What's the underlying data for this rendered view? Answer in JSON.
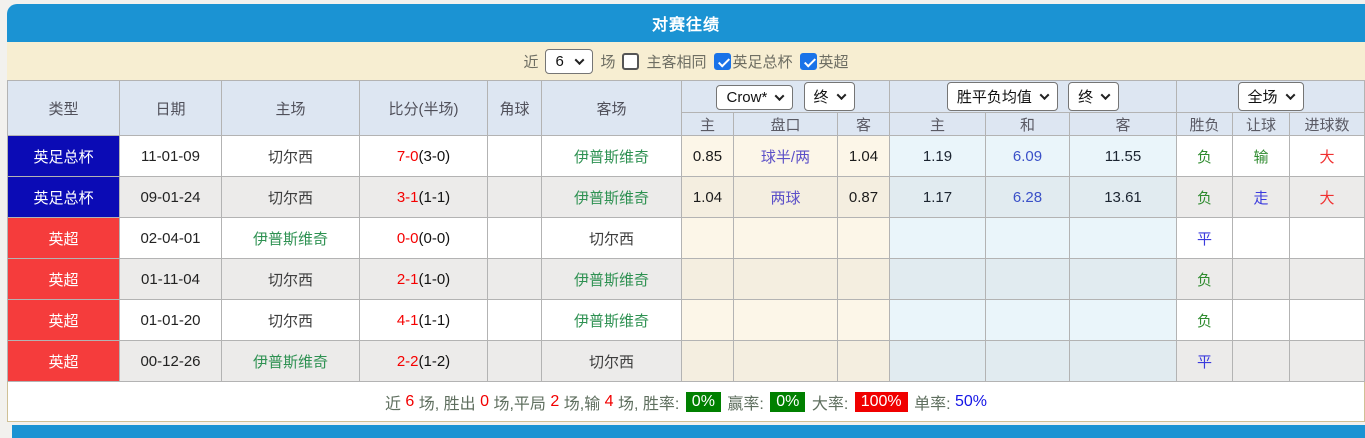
{
  "title": "对赛往绩",
  "filter": {
    "recent_label": "近",
    "count_value": "6",
    "matches_label": "场",
    "same_venue_label": "主客相同",
    "fa_cup_label": "英足总杯",
    "epl_label": "英超"
  },
  "table": {
    "left_headers": [
      "类型",
      "日期",
      "主场",
      "比分(半场)",
      "角球",
      "客场"
    ],
    "selects": {
      "bookmaker": "Crow*",
      "bookmaker_state": "终",
      "avg_label": "胜平负均值",
      "avg_state": "终",
      "fulltime": "全场"
    },
    "sub_headers": [
      "主",
      "盘口",
      "客",
      "主",
      "和",
      "客",
      "胜负",
      "让球",
      "进球数"
    ],
    "rows": [
      {
        "type": "英足总杯",
        "date": "11-01-09",
        "home": "切尔西",
        "score": "7-0",
        "half": "(3-0)",
        "corner": "",
        "away": "伊普斯维奇",
        "o_home": "0.85",
        "o_line": "球半/两",
        "o_away": "1.04",
        "a_home": "1.19",
        "a_draw": "6.09",
        "a_away": "11.55",
        "result": "负",
        "let": "输",
        "goals": "大"
      },
      {
        "type": "英足总杯",
        "date": "09-01-24",
        "home": "切尔西",
        "score": "3-1",
        "half": "(1-1)",
        "corner": "",
        "away": "伊普斯维奇",
        "o_home": "1.04",
        "o_line": "两球",
        "o_away": "0.87",
        "a_home": "1.17",
        "a_draw": "6.28",
        "a_away": "13.61",
        "result": "负",
        "let": "走",
        "goals": "大"
      },
      {
        "type": "英超",
        "date": "02-04-01",
        "home": "伊普斯维奇",
        "score": "0-0",
        "half": "(0-0)",
        "corner": "",
        "away": "切尔西",
        "o_home": "",
        "o_line": "",
        "o_away": "",
        "a_home": "",
        "a_draw": "",
        "a_away": "",
        "result": "平",
        "let": "",
        "goals": ""
      },
      {
        "type": "英超",
        "date": "01-11-04",
        "home": "切尔西",
        "score": "2-1",
        "half": "(1-0)",
        "corner": "",
        "away": "伊普斯维奇",
        "o_home": "",
        "o_line": "",
        "o_away": "",
        "a_home": "",
        "a_draw": "",
        "a_away": "",
        "result": "负",
        "let": "",
        "goals": ""
      },
      {
        "type": "英超",
        "date": "01-01-20",
        "home": "切尔西",
        "score": "4-1",
        "half": "(1-1)",
        "corner": "",
        "away": "伊普斯维奇",
        "o_home": "",
        "o_line": "",
        "o_away": "",
        "a_home": "",
        "a_draw": "",
        "a_away": "",
        "result": "负",
        "let": "",
        "goals": ""
      },
      {
        "type": "英超",
        "date": "00-12-26",
        "home": "伊普斯维奇",
        "score": "2-2",
        "half": "(1-2)",
        "corner": "",
        "away": "切尔西",
        "o_home": "",
        "o_line": "",
        "o_away": "",
        "a_home": "",
        "a_draw": "",
        "a_away": "",
        "result": "平",
        "let": "",
        "goals": ""
      }
    ]
  },
  "maps": {
    "type_colors": {
      "英足总杯": "#0b0bb5",
      "英超": "#f53c3c"
    },
    "team_colors": {
      "切尔西": "#3d3d3d",
      "伊普斯维奇": "#2e9152"
    },
    "value_colors": {
      "负": "#2e8b2e",
      "平": "#3b3bdd",
      "输": "#2e8b2e",
      "走": "#3b3bdd",
      "大": "#f03030"
    }
  },
  "summary": {
    "parts": [
      {
        "t": "近 ",
        "c": "label"
      },
      {
        "t": "6",
        "c": "num"
      },
      {
        "t": " 场, ",
        "c": "label"
      },
      {
        "t": "胜出 ",
        "c": "label"
      },
      {
        "t": "0",
        "c": "num"
      },
      {
        "t": " 场,",
        "c": "label"
      },
      {
        "t": "平局 ",
        "c": "label"
      },
      {
        "t": "2",
        "c": "num"
      },
      {
        "t": " 场,",
        "c": "label"
      },
      {
        "t": "输 ",
        "c": "label"
      },
      {
        "t": "4",
        "c": "num"
      },
      {
        "t": " 场, ",
        "c": "label"
      },
      {
        "t": "胜率: ",
        "c": "label"
      },
      {
        "t": "0%",
        "c": "badge-green"
      },
      {
        "t": " 赢率: ",
        "c": "label"
      },
      {
        "t": "0%",
        "c": "badge-green"
      },
      {
        "t": " 大率: ",
        "c": "label"
      },
      {
        "t": "100%",
        "c": "badge-red"
      },
      {
        "t": " 单率: ",
        "c": "label"
      },
      {
        "t": "50%",
        "c": "blue"
      }
    ]
  },
  "colors": {
    "accent_blue": "#1b93d3",
    "filter_bg": "#f7eed2",
    "header_bg": "#dde6f2",
    "badge_blue": "#0b0bb5",
    "badge_red": "#f53c3c",
    "score_red": "#f50000",
    "team_green": "#2e9152"
  }
}
